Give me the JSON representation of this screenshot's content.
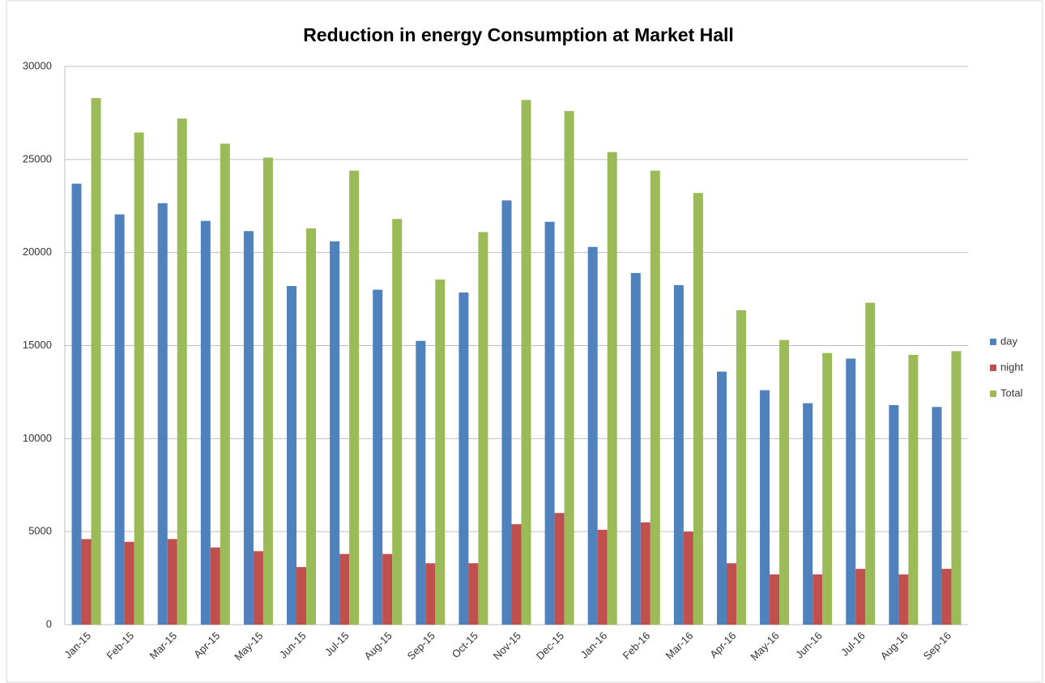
{
  "chart_data": {
    "type": "bar",
    "title": "Reduction in energy Consumption at Market Hall",
    "categories": [
      "Jan-15",
      "Feb-15",
      "Mar-15",
      "Apr-15",
      "May-15",
      "Jun-15",
      "Jul-15",
      "Aug-15",
      "Sep-15",
      "Oct-15",
      "Nov-15",
      "Dec-15",
      "Jan-16",
      "Feb-16",
      "Mar-16",
      "Apr-16",
      "May-16",
      "Jun-16",
      "Jul-16",
      "Aug-16",
      "Sep-16"
    ],
    "series": [
      {
        "name": "day",
        "color": "#4f81bd",
        "values": [
          23700,
          22050,
          22650,
          21700,
          21150,
          18200,
          20600,
          18000,
          15250,
          17850,
          22800,
          21650,
          20300,
          18900,
          18250,
          13600,
          12600,
          11900,
          14300,
          11800,
          11700
        ]
      },
      {
        "name": "night",
        "color": "#c0504d",
        "values": [
          4600,
          4450,
          4600,
          4150,
          3950,
          3100,
          3800,
          3800,
          3300,
          3300,
          5400,
          6000,
          5100,
          5500,
          5000,
          3300,
          2700,
          2700,
          3000,
          2700,
          3000
        ]
      },
      {
        "name": "Total",
        "color": "#9bbb59",
        "values": [
          28300,
          26450,
          27200,
          25850,
          25100,
          21300,
          24400,
          21800,
          18550,
          21100,
          28200,
          27600,
          25400,
          24400,
          23200,
          16900,
          15300,
          14600,
          17300,
          14500,
          14700
        ]
      }
    ],
    "ylim": [
      0,
      30000
    ],
    "yticks": [
      0,
      5000,
      10000,
      15000,
      20000,
      25000,
      30000
    ],
    "grid": true,
    "legend": "right"
  }
}
